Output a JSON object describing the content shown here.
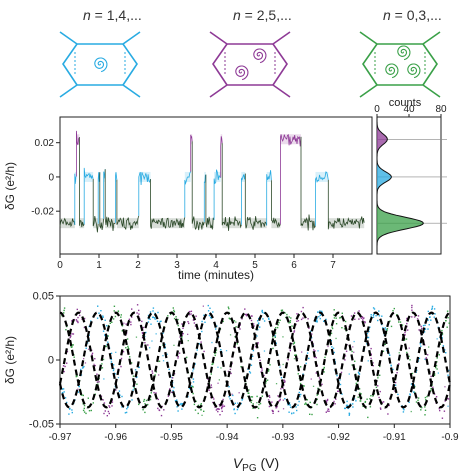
{
  "colors": {
    "cyan": "#29abe2",
    "purple": "#8e3a96",
    "green": "#3aa048",
    "dark_green": "#2d4a2a",
    "axis": "#222222",
    "fit": "#000000"
  },
  "top_row": {
    "panels": [
      {
        "label_prefix": "n",
        "label_suffix": " = 1,4,...",
        "color_key": "cyan",
        "spirals": 1
      },
      {
        "label_prefix": "n",
        "label_suffix": " = 2,5,...",
        "color_key": "purple",
        "spirals": 2
      },
      {
        "label_prefix": "n",
        "label_suffix": " = 0,3,...",
        "color_key": "green",
        "spirals": 3
      }
    ]
  },
  "chart_data": [
    {
      "id": "telegraph",
      "type": "line",
      "xlabel": "time (minutes)",
      "ylabel": "δG (e²/h)",
      "xlim": [
        0,
        8
      ],
      "ylim": [
        -0.045,
        0.035
      ],
      "xticks": [
        "0",
        "1",
        "2",
        "3",
        "4",
        "5",
        "6",
        "7"
      ],
      "yticks": [
        "0.02",
        "0",
        "-0.02"
      ],
      "ytick_values": [
        0.02,
        0,
        -0.02
      ],
      "levels": [
        {
          "value": -0.027,
          "color_key": "dark_green"
        },
        {
          "value": 0.0,
          "color_key": "cyan"
        },
        {
          "value": 0.022,
          "color_key": "purple"
        }
      ],
      "segments": [
        [
          0.0,
          0.38,
          0
        ],
        [
          0.38,
          0.42,
          1
        ],
        [
          0.42,
          0.5,
          2
        ],
        [
          0.5,
          0.62,
          0
        ],
        [
          0.62,
          0.85,
          1
        ],
        [
          0.85,
          0.98,
          0
        ],
        [
          0.98,
          1.02,
          1
        ],
        [
          1.02,
          1.12,
          0
        ],
        [
          1.12,
          1.16,
          1
        ],
        [
          1.16,
          1.42,
          0
        ],
        [
          1.42,
          1.46,
          1
        ],
        [
          1.46,
          2.02,
          0
        ],
        [
          2.02,
          2.32,
          1
        ],
        [
          2.32,
          3.2,
          0
        ],
        [
          3.2,
          3.35,
          1
        ],
        [
          3.35,
          3.39,
          2
        ],
        [
          3.39,
          3.7,
          0
        ],
        [
          3.7,
          3.74,
          1
        ],
        [
          3.74,
          3.95,
          0
        ],
        [
          3.95,
          4.12,
          1
        ],
        [
          4.12,
          4.16,
          2
        ],
        [
          4.16,
          4.65,
          0
        ],
        [
          4.65,
          4.75,
          1
        ],
        [
          4.75,
          5.3,
          0
        ],
        [
          5.3,
          5.42,
          1
        ],
        [
          5.42,
          5.65,
          0
        ],
        [
          5.65,
          6.18,
          2
        ],
        [
          6.18,
          6.55,
          0
        ],
        [
          6.55,
          6.88,
          1
        ],
        [
          6.88,
          7.8,
          0
        ]
      ]
    },
    {
      "id": "histogram",
      "type": "area",
      "title": "counts",
      "xlim": [
        0,
        80
      ],
      "xticks": [
        "0",
        "40",
        "80"
      ],
      "xtick_values": [
        0,
        40,
        80
      ],
      "peaks": [
        {
          "center": -0.027,
          "width": 0.0035,
          "height": 58,
          "color_key": "green"
        },
        {
          "center": 0.0,
          "width": 0.003,
          "height": 18,
          "color_key": "cyan"
        },
        {
          "center": 0.022,
          "width": 0.003,
          "height": 13,
          "color_key": "purple"
        }
      ]
    },
    {
      "id": "oscillations",
      "type": "scatter",
      "xlabel_main": "V",
      "xlabel_sub": "PG",
      "xlabel_unit": " (V)",
      "ylabel": "δG (e²/h)",
      "xlim": [
        -0.97,
        -0.9
      ],
      "ylim": [
        -0.05,
        0.05
      ],
      "xticks": [
        "-0.97",
        "-0.96",
        "-0.95",
        "-0.94",
        "-0.93",
        "-0.92",
        "-0.91",
        "-0.9"
      ],
      "xtick_values": [
        -0.97,
        -0.96,
        -0.95,
        -0.94,
        -0.93,
        -0.92,
        -0.91,
        -0.9
      ],
      "yticks": [
        "0.05",
        "0",
        "-0.05"
      ],
      "ytick_values": [
        0.05,
        0,
        -0.05
      ],
      "amplitude": 0.037,
      "period": 0.01,
      "series": [
        {
          "color_key": "green",
          "phase": 0.0
        },
        {
          "color_key": "cyan",
          "phase": 2.094
        },
        {
          "color_key": "purple",
          "phase": 4.189
        }
      ]
    }
  ]
}
